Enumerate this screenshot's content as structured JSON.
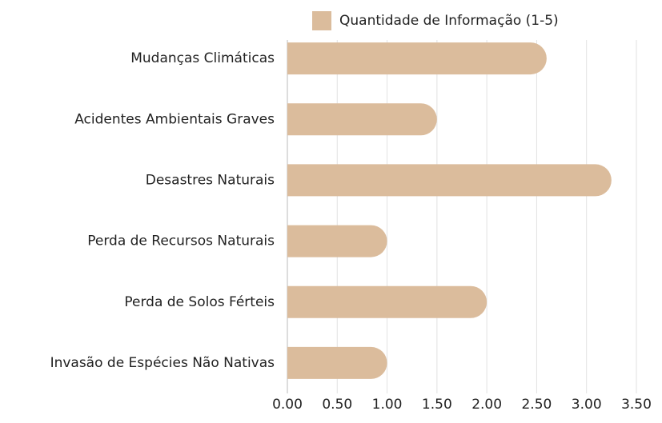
{
  "chart_data": {
    "type": "bar",
    "orientation": "horizontal",
    "categories": [
      "Mudanças Climáticas",
      "Acidentes Ambientais Graves",
      "Desastres Naturais",
      "Perda de Recursos Naturais",
      "Perda de Solos Férteis",
      "Invasão de Espécies Não Nativas"
    ],
    "series": [
      {
        "name": "Quantidade de Informação (1-5)",
        "color": "#dbbc9c",
        "values": [
          2.6,
          1.5,
          3.25,
          1.0,
          2.0,
          1.0
        ]
      }
    ],
    "xlim": [
      0,
      3.5
    ],
    "xticks": [
      {
        "value": 0,
        "label": "0.00"
      },
      {
        "value": 0.5,
        "label": "0.50"
      },
      {
        "value": 1,
        "label": "1.00"
      },
      {
        "value": 1.5,
        "label": "1.50"
      },
      {
        "value": 2,
        "label": "2.00"
      },
      {
        "value": 2.5,
        "label": "2.50"
      },
      {
        "value": 3,
        "label": "3.00"
      },
      {
        "value": 3.5,
        "label": "3.50"
      }
    ],
    "grid": true,
    "legend": "top"
  }
}
